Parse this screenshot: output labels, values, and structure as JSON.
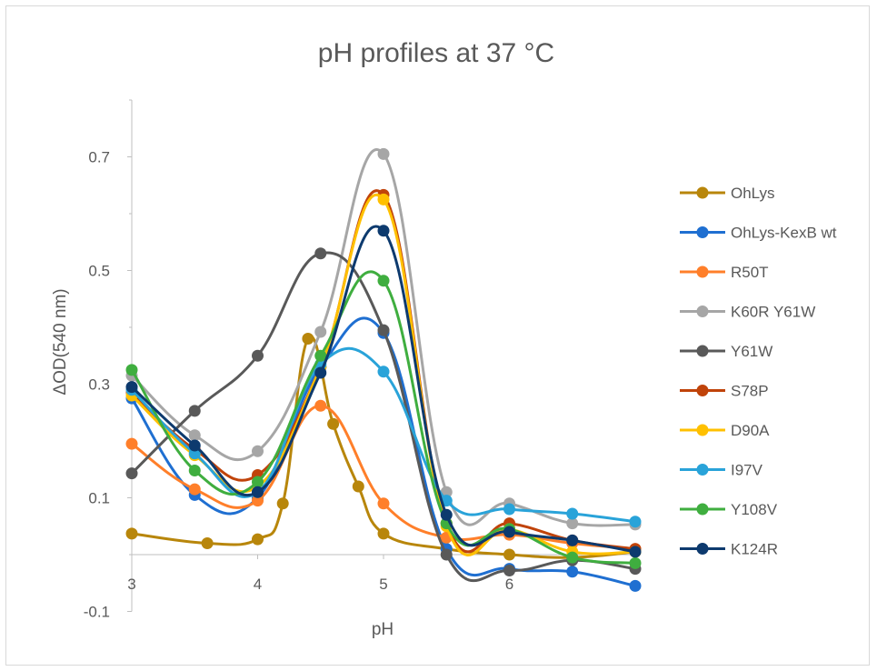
{
  "chart_data": {
    "type": "line",
    "title": "pH profiles at 37 °C",
    "xlabel": "pH",
    "ylabel": "ΔOD(540 nm)",
    "xlim": [
      3,
      7
    ],
    "ylim": [
      -0.1,
      0.8
    ],
    "x_ticks": [
      "3",
      "4",
      "5",
      "6"
    ],
    "y_ticks": [
      "-0.1",
      "0.1",
      "0.3",
      "0.5",
      "0.7"
    ],
    "smooth": true,
    "legend_position": "right",
    "grid": false,
    "series": [
      {
        "name": "OhLys",
        "color": "#b8860b",
        "x": [
          3,
          3.6,
          4,
          4.2,
          4.4,
          4.6,
          4.8,
          5,
          5.5,
          6,
          6.5,
          7
        ],
        "y": [
          0.037,
          0.02,
          0.027,
          0.09,
          0.38,
          0.23,
          0.12,
          0.037,
          0.01,
          0,
          -0.005,
          0.005
        ]
      },
      {
        "name": "OhLys-KexB wt",
        "color": "#1f6fd1",
        "x": [
          3,
          3.5,
          4,
          4.5,
          5,
          5.5,
          6,
          6.5,
          7
        ],
        "y": [
          0.275,
          0.105,
          0.1,
          0.33,
          0.39,
          0.01,
          -0.025,
          -0.03,
          -0.055
        ]
      },
      {
        "name": "R50T",
        "color": "#ff7f2a",
        "x": [
          3,
          3.5,
          4,
          4.5,
          5,
          5.5,
          6,
          6.5,
          7
        ],
        "y": [
          0.195,
          0.115,
          0.095,
          0.262,
          0.09,
          0.03,
          0.035,
          0.02,
          0.01
        ]
      },
      {
        "name": "K60R Y61W",
        "color": "#a6a6a6",
        "x": [
          3,
          3.5,
          4,
          4.5,
          5,
          5.5,
          6,
          6.5,
          7
        ],
        "y": [
          0.315,
          0.21,
          0.182,
          0.392,
          0.705,
          0.11,
          0.09,
          0.055,
          0.053
        ]
      },
      {
        "name": "Y61W",
        "color": "#595959",
        "x": [
          3,
          3.5,
          4,
          4.5,
          5,
          5.5,
          6,
          6.5,
          7
        ],
        "y": [
          0.143,
          0.253,
          0.35,
          0.53,
          0.395,
          0,
          -0.028,
          -0.01,
          -0.025
        ]
      },
      {
        "name": "S78P",
        "color": "#c0430a",
        "x": [
          3,
          3.5,
          4,
          4.5,
          5,
          5.5,
          6,
          6.5,
          7
        ],
        "y": [
          0.285,
          0.185,
          0.14,
          0.33,
          0.633,
          0.055,
          0.055,
          0.025,
          0.01
        ]
      },
      {
        "name": "D90A",
        "color": "#ffc000",
        "x": [
          3,
          3.5,
          4,
          4.5,
          5,
          5.5,
          6,
          6.5,
          7
        ],
        "y": [
          0.28,
          0.175,
          0.12,
          0.33,
          0.625,
          0.05,
          0.045,
          0.005,
          0.005
        ]
      },
      {
        "name": "I97V",
        "color": "#29a3d9",
        "x": [
          3,
          3.5,
          4,
          4.5,
          5,
          5.5,
          6,
          6.5,
          7
        ],
        "y": [
          0.29,
          0.178,
          0.11,
          0.335,
          0.322,
          0.095,
          0.08,
          0.072,
          0.058
        ]
      },
      {
        "name": "Y108V",
        "color": "#3fae3f",
        "x": [
          3,
          3.5,
          4,
          4.5,
          5,
          5.5,
          6,
          6.5,
          7
        ],
        "y": [
          0.325,
          0.148,
          0.128,
          0.35,
          0.482,
          0.055,
          0.045,
          -0.005,
          -0.015
        ]
      },
      {
        "name": "K124R",
        "color": "#0d3a6e",
        "x": [
          3,
          3.5,
          4,
          4.5,
          5,
          5.5,
          6,
          6.5,
          7
        ],
        "y": [
          0.295,
          0.192,
          0.11,
          0.32,
          0.57,
          0.07,
          0.04,
          0.025,
          0.005
        ]
      }
    ]
  }
}
